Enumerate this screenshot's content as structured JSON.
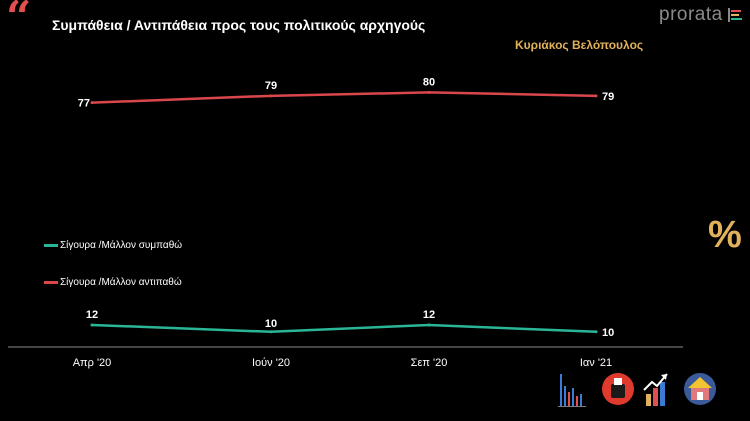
{
  "header": {
    "quote_glyph": "“",
    "title": "Συμπάθεια / Αντιπάθεια προς τους πολιτικούς αρχηγούς",
    "brand": "prorata",
    "percent_symbol": "%"
  },
  "colors": {
    "background": "#000000",
    "accent_red": "#e0504f",
    "accent_green": "#2bb597",
    "accent_gold": "#e2b15b",
    "axis": "#8c8c8c"
  },
  "chart_data": {
    "type": "line",
    "title": "Κυριάκος Βελόπουλος",
    "categories": [
      "Απρ '20",
      "Ιούν '20",
      "Σεπ '20",
      "Ιαν '21"
    ],
    "series": [
      {
        "name": "Σίγουρα /Μάλλον αντιπαθώ",
        "values": [
          77,
          79,
          80,
          79
        ],
        "color": "#d9474a"
      },
      {
        "name": "Σίγουρα /Μάλλον συμπαθώ",
        "values": [
          12,
          10,
          12,
          10
        ],
        "color": "#2bb597"
      }
    ],
    "legend": [
      {
        "label": "Σίγουρα /Μάλλον συμπαθώ",
        "color": "#2bb597"
      },
      {
        "label": "Σίγουρα /Μάλλον αντιπαθώ",
        "color": "#d9474a"
      }
    ],
    "ylim": [
      0,
      100
    ],
    "grid": false
  },
  "footer_icons": [
    "bar-chart-icon",
    "ballot-icon",
    "trend-up-icon",
    "home-icon"
  ]
}
